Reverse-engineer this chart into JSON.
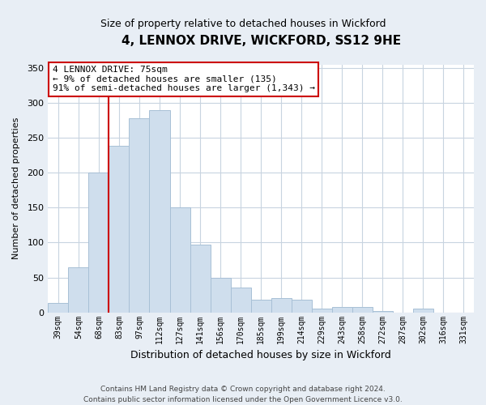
{
  "title": "4, LENNOX DRIVE, WICKFORD, SS12 9HE",
  "subtitle": "Size of property relative to detached houses in Wickford",
  "xlabel": "Distribution of detached houses by size in Wickford",
  "ylabel": "Number of detached properties",
  "bar_labels": [
    "39sqm",
    "54sqm",
    "68sqm",
    "83sqm",
    "97sqm",
    "112sqm",
    "127sqm",
    "141sqm",
    "156sqm",
    "170sqm",
    "185sqm",
    "199sqm",
    "214sqm",
    "229sqm",
    "243sqm",
    "258sqm",
    "272sqm",
    "287sqm",
    "302sqm",
    "316sqm",
    "331sqm"
  ],
  "bar_values": [
    13,
    65,
    200,
    238,
    278,
    290,
    150,
    97,
    49,
    35,
    18,
    20,
    18,
    5,
    8,
    8,
    2,
    0,
    5,
    0,
    0
  ],
  "bar_color": "#cfdeed",
  "bar_edge_color": "#a8c0d6",
  "vline_x_index": 2,
  "vline_color": "#cc0000",
  "annotation_line1": "4 LENNOX DRIVE: 75sqm",
  "annotation_line2": "← 9% of detached houses are smaller (135)",
  "annotation_line3": "91% of semi-detached houses are larger (1,343) →",
  "annotation_box_color": "white",
  "annotation_box_edge_color": "#cc0000",
  "ylim": [
    0,
    355
  ],
  "yticks": [
    0,
    50,
    100,
    150,
    200,
    250,
    300,
    350
  ],
  "footer_line1": "Contains HM Land Registry data © Crown copyright and database right 2024.",
  "footer_line2": "Contains public sector information licensed under the Open Government Licence v3.0.",
  "bg_color": "#e8eef5",
  "plot_bg_color": "white",
  "grid_color": "#c8d4e0"
}
